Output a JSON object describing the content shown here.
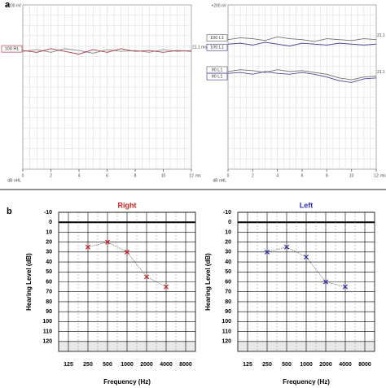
{
  "panel_labels": [
    "a",
    "b"
  ],
  "chart_data": [
    {
      "type": "line",
      "scale_label": "+200 nV",
      "ylabel": "dB nHL",
      "xlabel": "ms",
      "x": [
        0,
        1,
        2,
        3,
        4,
        5,
        6,
        7,
        8,
        9,
        10,
        11,
        12
      ],
      "xlim": [
        0,
        12
      ],
      "xticks": [
        0,
        2,
        4,
        6,
        8,
        10,
        12
      ],
      "ylim": [
        -1600,
        200
      ],
      "grid": true,
      "series": [
        {
          "color": "#8a8a8a",
          "values": [
            -310,
            -290,
            -320,
            -280,
            -300,
            -330,
            -290,
            -310,
            -300,
            -320,
            -290,
            -310,
            -300
          ]
        },
        {
          "name": "100 R1",
          "color": "#b03a4a",
          "end_label": "21.1 ms",
          "values": [
            -300,
            -320,
            -280,
            -310,
            -340,
            -290,
            -320,
            -280,
            -310,
            -300,
            -320,
            -300,
            -310
          ]
        }
      ]
    },
    {
      "type": "line",
      "scale_label": "+200 nV",
      "ylabel": "dB nHL",
      "xlabel": "ms",
      "x": [
        0,
        1,
        2,
        3,
        4,
        5,
        6,
        7,
        8,
        9,
        10,
        11,
        12
      ],
      "xlim": [
        0,
        12
      ],
      "xticks": [
        0,
        2,
        4,
        6,
        8,
        10,
        12
      ],
      "ylim": [
        -1600,
        200
      ],
      "grid": true,
      "series": [
        {
          "name": "100 L1",
          "color": "#707070",
          "end_label": "21.1 ms",
          "values": [
            -180,
            -160,
            -170,
            -190,
            -150,
            -170,
            -180,
            -200,
            -170,
            -180,
            -190,
            -170,
            -180
          ]
        },
        {
          "name": "100 L1",
          "color": "#4a4a9a",
          "values": [
            -230,
            -220,
            -240,
            -210,
            -230,
            -250,
            -220,
            -230,
            -240,
            -220,
            -230,
            -240,
            -230
          ]
        },
        {
          "name": "90 L1",
          "color": "#707070",
          "end_label": "21.1 ms",
          "values": [
            -530,
            -510,
            -520,
            -540,
            -510,
            -530,
            -520,
            -540,
            -560,
            -600,
            -620,
            -590,
            -580
          ]
        },
        {
          "name": "90 L1",
          "color": "#4a4a9a",
          "values": [
            -550,
            -540,
            -560,
            -530,
            -550,
            -560,
            -540,
            -560,
            -590,
            -630,
            -650,
            -610,
            -600
          ]
        }
      ]
    },
    {
      "type": "audiogram",
      "title": "Right",
      "ylabel": "Hearing Level (dB)",
      "xlabel": "Frequency (Hz)",
      "categories": [
        "125",
        "250",
        "500",
        "1000",
        "2000",
        "4000",
        "8000"
      ],
      "ylim": [
        -10,
        130
      ],
      "yticks": [
        -10,
        0,
        10,
        20,
        30,
        40,
        50,
        60,
        70,
        80,
        90,
        100,
        110,
        120
      ],
      "inverted": true,
      "series": [
        {
          "color": "#d42020",
          "marker": "x",
          "values": [
            null,
            25,
            20,
            30,
            55,
            65,
            null
          ]
        }
      ]
    },
    {
      "type": "audiogram",
      "title": "Left",
      "ylabel": "Hearing Level (dB)",
      "xlabel": "Frequency (Hz)",
      "categories": [
        "125",
        "250",
        "500",
        "1000",
        "2000",
        "4000",
        "8000"
      ],
      "ylim": [
        -10,
        130
      ],
      "yticks": [
        -10,
        0,
        10,
        20,
        30,
        40,
        50,
        60,
        70,
        80,
        90,
        100,
        110,
        120
      ],
      "inverted": true,
      "series": [
        {
          "color": "#3030b0",
          "marker": "x",
          "values": [
            null,
            30,
            25,
            35,
            60,
            65,
            null
          ]
        }
      ]
    }
  ]
}
